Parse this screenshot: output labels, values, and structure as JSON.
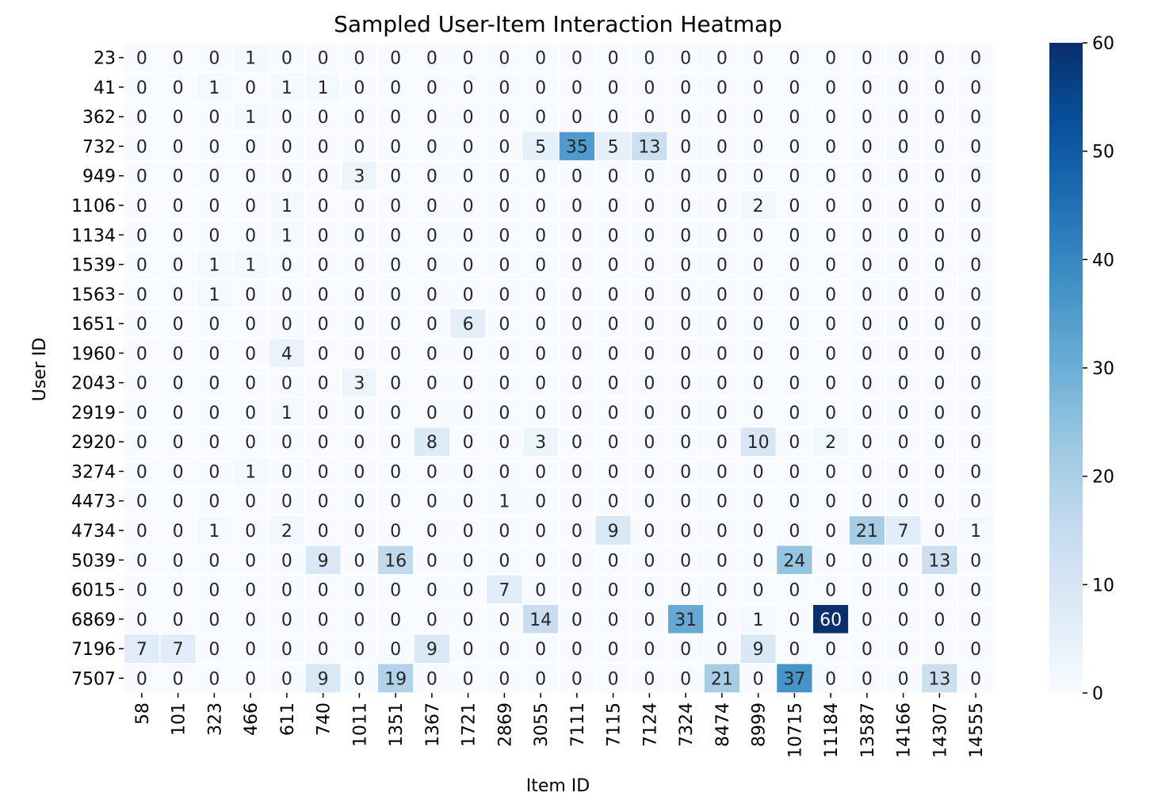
{
  "chart_data": {
    "type": "heatmap",
    "title": "Sampled User-Item Interaction Heatmap",
    "xlabel": "Item ID",
    "ylabel": "User ID",
    "x_categories": [
      "58",
      "101",
      "323",
      "466",
      "611",
      "740",
      "1011",
      "1351",
      "1367",
      "1721",
      "2869",
      "3055",
      "7111",
      "7115",
      "7124",
      "7324",
      "8474",
      "8999",
      "10715",
      "11184",
      "13587",
      "14166",
      "14307",
      "14555"
    ],
    "y_categories": [
      "23",
      "41",
      "362",
      "732",
      "949",
      "1106",
      "1134",
      "1539",
      "1563",
      "1651",
      "1960",
      "2043",
      "2919",
      "2920",
      "3274",
      "4473",
      "4734",
      "5039",
      "6015",
      "6869",
      "7196",
      "7507"
    ],
    "values": [
      [
        0,
        0,
        0,
        1,
        0,
        0,
        0,
        0,
        0,
        0,
        0,
        0,
        0,
        0,
        0,
        0,
        0,
        0,
        0,
        0,
        0,
        0,
        0,
        0
      ],
      [
        0,
        0,
        1,
        0,
        1,
        1,
        0,
        0,
        0,
        0,
        0,
        0,
        0,
        0,
        0,
        0,
        0,
        0,
        0,
        0,
        0,
        0,
        0,
        0
      ],
      [
        0,
        0,
        0,
        1,
        0,
        0,
        0,
        0,
        0,
        0,
        0,
        0,
        0,
        0,
        0,
        0,
        0,
        0,
        0,
        0,
        0,
        0,
        0,
        0
      ],
      [
        0,
        0,
        0,
        0,
        0,
        0,
        0,
        0,
        0,
        0,
        0,
        5,
        35,
        5,
        13,
        0,
        0,
        0,
        0,
        0,
        0,
        0,
        0,
        0
      ],
      [
        0,
        0,
        0,
        0,
        0,
        0,
        3,
        0,
        0,
        0,
        0,
        0,
        0,
        0,
        0,
        0,
        0,
        0,
        0,
        0,
        0,
        0,
        0,
        0
      ],
      [
        0,
        0,
        0,
        0,
        1,
        0,
        0,
        0,
        0,
        0,
        0,
        0,
        0,
        0,
        0,
        0,
        0,
        2,
        0,
        0,
        0,
        0,
        0,
        0
      ],
      [
        0,
        0,
        0,
        0,
        1,
        0,
        0,
        0,
        0,
        0,
        0,
        0,
        0,
        0,
        0,
        0,
        0,
        0,
        0,
        0,
        0,
        0,
        0,
        0
      ],
      [
        0,
        0,
        1,
        1,
        0,
        0,
        0,
        0,
        0,
        0,
        0,
        0,
        0,
        0,
        0,
        0,
        0,
        0,
        0,
        0,
        0,
        0,
        0,
        0
      ],
      [
        0,
        0,
        1,
        0,
        0,
        0,
        0,
        0,
        0,
        0,
        0,
        0,
        0,
        0,
        0,
        0,
        0,
        0,
        0,
        0,
        0,
        0,
        0,
        0
      ],
      [
        0,
        0,
        0,
        0,
        0,
        0,
        0,
        0,
        0,
        6,
        0,
        0,
        0,
        0,
        0,
        0,
        0,
        0,
        0,
        0,
        0,
        0,
        0,
        0
      ],
      [
        0,
        0,
        0,
        0,
        4,
        0,
        0,
        0,
        0,
        0,
        0,
        0,
        0,
        0,
        0,
        0,
        0,
        0,
        0,
        0,
        0,
        0,
        0,
        0
      ],
      [
        0,
        0,
        0,
        0,
        0,
        0,
        3,
        0,
        0,
        0,
        0,
        0,
        0,
        0,
        0,
        0,
        0,
        0,
        0,
        0,
        0,
        0,
        0,
        0
      ],
      [
        0,
        0,
        0,
        0,
        1,
        0,
        0,
        0,
        0,
        0,
        0,
        0,
        0,
        0,
        0,
        0,
        0,
        0,
        0,
        0,
        0,
        0,
        0,
        0
      ],
      [
        0,
        0,
        0,
        0,
        0,
        0,
        0,
        0,
        8,
        0,
        0,
        3,
        0,
        0,
        0,
        0,
        0,
        10,
        0,
        2,
        0,
        0,
        0,
        0
      ],
      [
        0,
        0,
        0,
        1,
        0,
        0,
        0,
        0,
        0,
        0,
        0,
        0,
        0,
        0,
        0,
        0,
        0,
        0,
        0,
        0,
        0,
        0,
        0,
        0
      ],
      [
        0,
        0,
        0,
        0,
        0,
        0,
        0,
        0,
        0,
        0,
        1,
        0,
        0,
        0,
        0,
        0,
        0,
        0,
        0,
        0,
        0,
        0,
        0,
        0
      ],
      [
        0,
        0,
        1,
        0,
        2,
        0,
        0,
        0,
        0,
        0,
        0,
        0,
        0,
        9,
        0,
        0,
        0,
        0,
        0,
        0,
        21,
        7,
        0,
        1
      ],
      [
        0,
        0,
        0,
        0,
        0,
        9,
        0,
        16,
        0,
        0,
        0,
        0,
        0,
        0,
        0,
        0,
        0,
        0,
        24,
        0,
        0,
        0,
        13,
        0
      ],
      [
        0,
        0,
        0,
        0,
        0,
        0,
        0,
        0,
        0,
        0,
        7,
        0,
        0,
        0,
        0,
        0,
        0,
        0,
        0,
        0,
        0,
        0,
        0,
        0
      ],
      [
        0,
        0,
        0,
        0,
        0,
        0,
        0,
        0,
        0,
        0,
        0,
        14,
        0,
        0,
        0,
        31,
        0,
        1,
        0,
        60,
        0,
        0,
        0,
        0
      ],
      [
        7,
        7,
        0,
        0,
        0,
        0,
        0,
        0,
        9,
        0,
        0,
        0,
        0,
        0,
        0,
        0,
        0,
        9,
        0,
        0,
        0,
        0,
        0,
        0
      ],
      [
        0,
        0,
        0,
        0,
        0,
        9,
        0,
        19,
        0,
        0,
        0,
        0,
        0,
        0,
        0,
        0,
        21,
        0,
        37,
        0,
        0,
        0,
        13,
        0
      ]
    ],
    "colorbar": {
      "min": 0,
      "max": 60,
      "ticks": [
        0,
        10,
        20,
        30,
        40,
        50,
        60
      ]
    },
    "colormap": "Blues",
    "annotations": true,
    "grid": false,
    "legend": "colorbar-right"
  }
}
